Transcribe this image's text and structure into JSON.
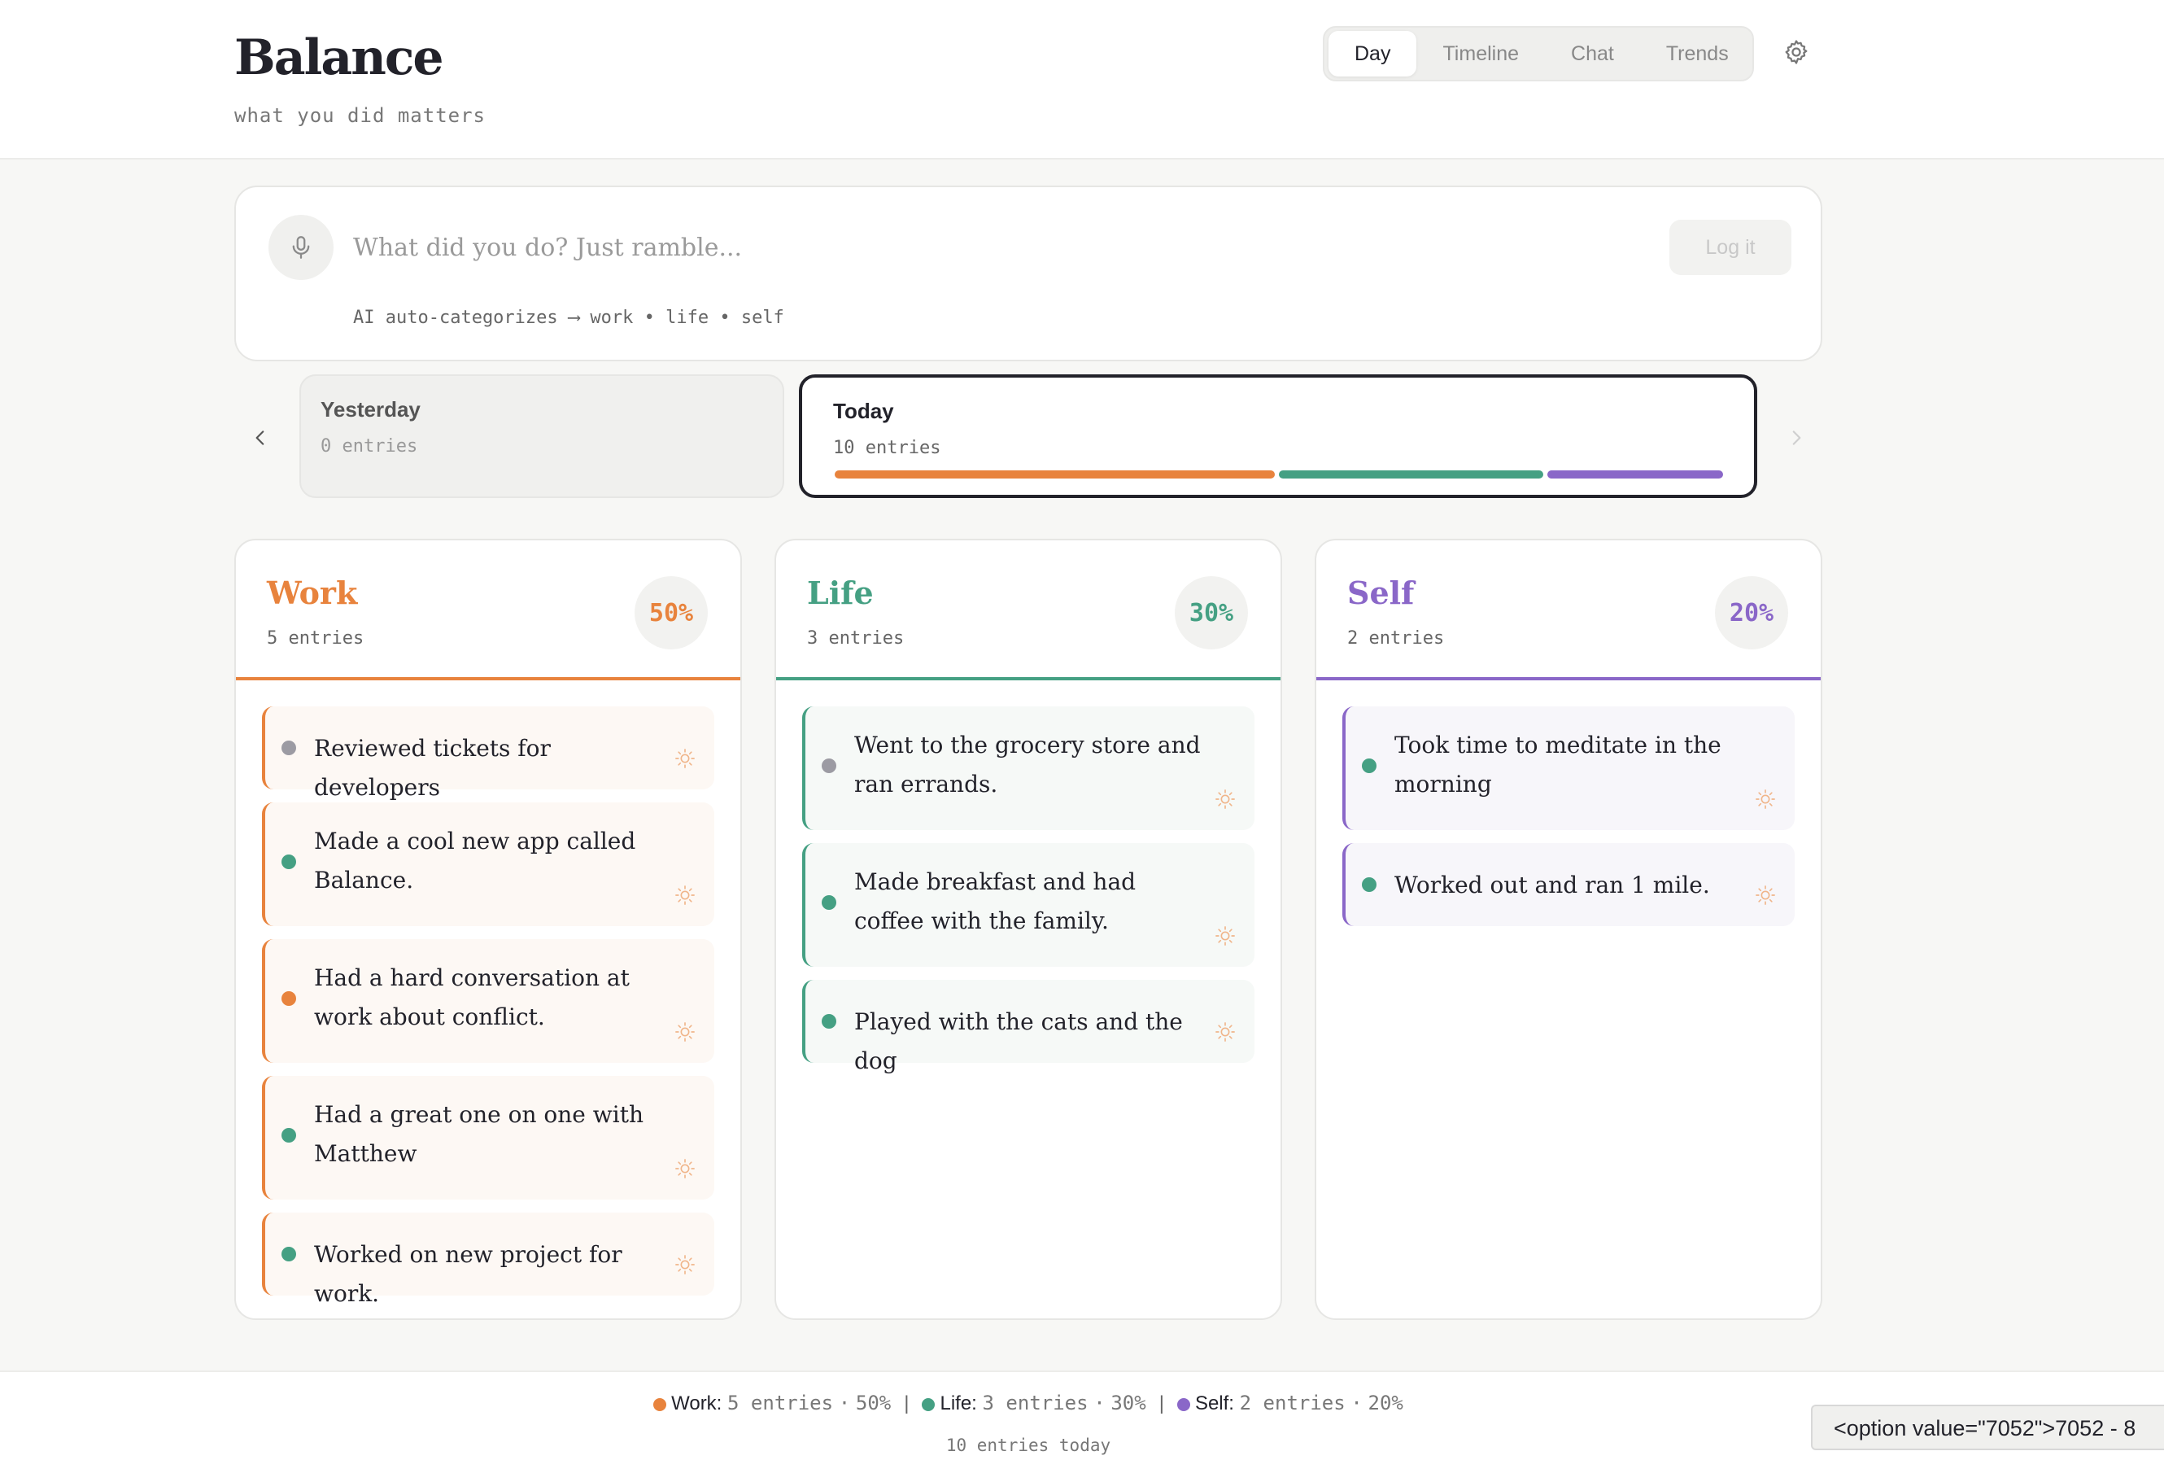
{
  "app": {
    "title": "Balance",
    "subtitle": "what you did matters"
  },
  "nav": {
    "tabs": [
      {
        "label": "Day",
        "active": true
      },
      {
        "label": "Timeline",
        "active": false
      },
      {
        "label": "Chat",
        "active": false
      },
      {
        "label": "Trends",
        "active": false
      }
    ],
    "settings_icon": "gear-icon"
  },
  "composer": {
    "placeholder": "What did you do? Just ramble...",
    "value": "",
    "submit_label": "Log it",
    "hint": "AI auto-categorizes ⟶ work • life • self",
    "mic_icon": "microphone-icon"
  },
  "days": [
    {
      "name": "Yesterday",
      "count": "0 entries"
    },
    {
      "name": "Today",
      "count": "10 entries",
      "selected": true,
      "split": [
        0.5,
        0.3,
        0.2
      ]
    }
  ],
  "colors": {
    "work": "#e8833d",
    "life": "#45a083",
    "self": "#8a67c8",
    "dot_gray": "#9c9ba3",
    "dot_green": "#45a083",
    "dot_orange": "#e8833d"
  },
  "columns": [
    {
      "key": "work",
      "title": "Work",
      "count": "5 entries",
      "percent": "50%",
      "entries": [
        {
          "text": "Reviewed tickets for developers",
          "dot": "gray",
          "icon": "sun-icon"
        },
        {
          "text": "Made a cool new app called Balance.",
          "dot": "green",
          "icon": "sun-icon"
        },
        {
          "text": "Had a hard conversation at work about conflict.",
          "dot": "orange",
          "icon": "sun-icon"
        },
        {
          "text": "Had a great one on one with Matthew",
          "dot": "green",
          "icon": "sun-icon"
        },
        {
          "text": "Worked on new project for work.",
          "dot": "green",
          "icon": "sun-icon"
        }
      ]
    },
    {
      "key": "life",
      "title": "Life",
      "count": "3 entries",
      "percent": "30%",
      "entries": [
        {
          "text": "Went to the grocery store and ran errands.",
          "dot": "gray",
          "icon": "sun-icon"
        },
        {
          "text": "Made breakfast and had coffee with the family.",
          "dot": "green",
          "icon": "sun-icon"
        },
        {
          "text": "Played with the cats and the dog",
          "dot": "green",
          "icon": "sun-icon"
        }
      ]
    },
    {
      "key": "self",
      "title": "Self",
      "count": "2 entries",
      "percent": "20%",
      "entries": [
        {
          "text": "Took time to meditate in the morning",
          "dot": "green",
          "icon": "sun-icon"
        },
        {
          "text": "Worked out and ran 1 mile.",
          "dot": "green",
          "icon": "sun-icon"
        }
      ]
    }
  ],
  "footer": {
    "stats": [
      {
        "label": "Work:",
        "value": "5 entries",
        "percent": "50%"
      },
      {
        "label": "Life:",
        "value": "3 entries",
        "percent": "30%"
      },
      {
        "label": "Self:",
        "value": "2 entries",
        "percent": "20%"
      }
    ],
    "total": "10 entries today"
  },
  "tooltip": {
    "text": "<option value=\"7052\">7052 - 8"
  }
}
